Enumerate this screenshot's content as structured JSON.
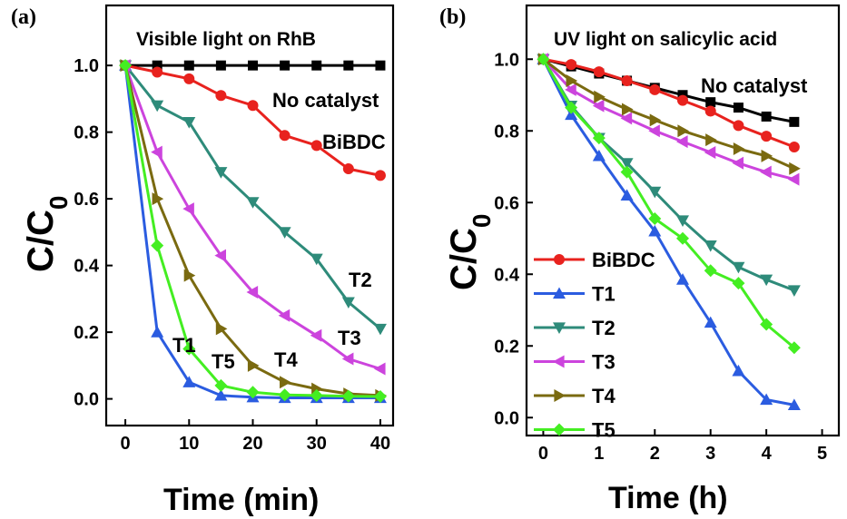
{
  "chart_data": [
    {
      "panel": "(a)",
      "type": "line",
      "title": "Visible light  on RhB",
      "xlabel": "Time (min)",
      "ylabel": "C/C0",
      "xlim": [
        -3,
        42
      ],
      "ylim": [
        -0.08,
        1.18
      ],
      "xticks": [
        0,
        10,
        20,
        30,
        40
      ],
      "yticks": [
        0.0,
        0.2,
        0.4,
        0.6,
        0.8,
        1.0
      ],
      "x": [
        0,
        5,
        10,
        15,
        20,
        25,
        30,
        35,
        40
      ],
      "series": [
        {
          "name": "No catalyst",
          "color": "#000000",
          "marker": "square",
          "values": [
            1.0,
            1.0,
            1.0,
            1.0,
            1.0,
            1.0,
            1.0,
            1.0,
            1.0
          ]
        },
        {
          "name": "BiBDC",
          "color": "#e8221e",
          "marker": "circle",
          "values": [
            1.0,
            0.98,
            0.96,
            0.91,
            0.88,
            0.79,
            0.76,
            0.69,
            0.67
          ]
        },
        {
          "name": "T1",
          "color": "#2b5ce0",
          "marker": "triangle-up",
          "values": [
            1.0,
            0.2,
            0.05,
            0.01,
            0.005,
            0.003,
            0.003,
            0.003,
            0.003
          ]
        },
        {
          "name": "T2",
          "color": "#2e8b7a",
          "marker": "triangle-down",
          "values": [
            1.0,
            0.88,
            0.83,
            0.68,
            0.59,
            0.5,
            0.42,
            0.29,
            0.21
          ]
        },
        {
          "name": "T3",
          "color": "#cc44dd",
          "marker": "triangle-left",
          "values": [
            1.0,
            0.74,
            0.57,
            0.43,
            0.32,
            0.25,
            0.19,
            0.12,
            0.09
          ]
        },
        {
          "name": "T4",
          "color": "#7a6a10",
          "marker": "triangle-right",
          "values": [
            1.0,
            0.6,
            0.37,
            0.21,
            0.1,
            0.05,
            0.03,
            0.015,
            0.01
          ]
        },
        {
          "name": "T5",
          "color": "#44ee22",
          "marker": "diamond",
          "values": [
            1.0,
            0.46,
            0.15,
            0.04,
            0.02,
            0.012,
            0.01,
            0.008,
            0.007
          ]
        }
      ],
      "annotations": [
        "No catalyst",
        "BiBDC",
        "T2",
        "T3",
        "T1",
        "T5",
        "T4"
      ]
    },
    {
      "panel": "(b)",
      "type": "line",
      "title": "UV light  on salicylic acid",
      "xlabel": "Time (h)",
      "ylabel": "C/C0",
      "xlim": [
        -0.3,
        5.3
      ],
      "ylim": [
        -0.05,
        1.15
      ],
      "xticks": [
        0,
        1,
        2,
        3,
        4,
        5
      ],
      "yticks": [
        0.0,
        0.2,
        0.4,
        0.6,
        0.8,
        1.0
      ],
      "x": [
        0,
        0.5,
        1,
        1.5,
        2,
        2.5,
        3,
        3.5,
        4,
        4.5
      ],
      "legend": "left",
      "series": [
        {
          "name": "No catalyst",
          "color": "#000000",
          "marker": "square",
          "values": [
            1.0,
            0.98,
            0.96,
            0.94,
            0.92,
            0.9,
            0.88,
            0.865,
            0.84,
            0.825
          ]
        },
        {
          "name": "BiBDC",
          "color": "#e8221e",
          "marker": "circle",
          "values": [
            1.0,
            0.985,
            0.965,
            0.94,
            0.915,
            0.885,
            0.855,
            0.815,
            0.785,
            0.755
          ]
        },
        {
          "name": "T1",
          "color": "#2b5ce0",
          "marker": "triangle-up",
          "values": [
            1.0,
            0.845,
            0.73,
            0.62,
            0.52,
            0.385,
            0.265,
            0.13,
            0.05,
            0.035
          ]
        },
        {
          "name": "T2",
          "color": "#2e8b7a",
          "marker": "triangle-down",
          "values": [
            1.0,
            0.87,
            0.78,
            0.71,
            0.63,
            0.55,
            0.48,
            0.42,
            0.385,
            0.355
          ]
        },
        {
          "name": "T3",
          "color": "#cc44dd",
          "marker": "triangle-left",
          "values": [
            1.0,
            0.915,
            0.87,
            0.835,
            0.8,
            0.77,
            0.74,
            0.71,
            0.685,
            0.665
          ]
        },
        {
          "name": "T4",
          "color": "#7a6a10",
          "marker": "triangle-right",
          "values": [
            1.0,
            0.94,
            0.895,
            0.86,
            0.83,
            0.8,
            0.775,
            0.75,
            0.73,
            0.695
          ]
        },
        {
          "name": "T5",
          "color": "#44ee22",
          "marker": "diamond",
          "values": [
            1.0,
            0.865,
            0.78,
            0.685,
            0.555,
            0.5,
            0.41,
            0.375,
            0.26,
            0.195
          ]
        }
      ],
      "annotations": [
        "No catalyst"
      ]
    }
  ]
}
